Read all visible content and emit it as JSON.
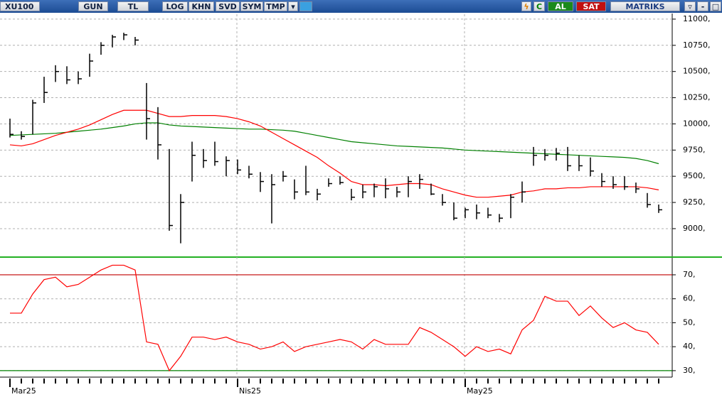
{
  "toolbar": {
    "symbol": "XU100",
    "buttons": [
      "GUN",
      "TL",
      "LOG",
      "KHN",
      "SVD",
      "SYM",
      "TMP"
    ],
    "refresh": "C",
    "buy": "AL",
    "sell": "SAT",
    "brand": "MATRIKS"
  },
  "chart_data": [
    {
      "type": "ohlc",
      "color": "#000000",
      "categories": [
        "Mar25",
        null,
        null,
        null,
        null,
        null,
        null,
        null,
        null,
        null,
        null,
        null,
        null,
        null,
        null,
        null,
        null,
        null,
        null,
        null,
        "Nis25",
        null,
        null,
        null,
        null,
        null,
        null,
        null,
        null,
        null,
        null,
        null,
        null,
        null,
        null,
        null,
        null,
        null,
        null,
        null,
        "May25",
        null,
        null,
        null,
        null,
        null,
        null,
        null,
        null,
        null,
        null,
        null,
        null,
        null,
        null,
        null,
        null,
        null
      ],
      "high": [
        10050,
        9930,
        10230,
        10450,
        10560,
        10550,
        10500,
        10670,
        10780,
        10850,
        10870,
        10830,
        10390,
        10160,
        9760,
        9330,
        9830,
        9760,
        9830,
        9690,
        9660,
        9600,
        9540,
        9520,
        9550,
        9470,
        9600,
        9380,
        9480,
        9500,
        9380,
        9420,
        9430,
        9480,
        9400,
        9500,
        9520,
        9430,
        9330,
        9250,
        9200,
        9230,
        9200,
        9140,
        9330,
        9450,
        9780,
        9760,
        9770,
        9780,
        9700,
        9680,
        9530,
        9500,
        9500,
        9440,
        9340,
        9230
      ],
      "low": [
        9870,
        9850,
        9900,
        10200,
        10400,
        10380,
        10380,
        10450,
        10660,
        10730,
        10800,
        10750,
        9850,
        9660,
        8980,
        8860,
        9450,
        9580,
        9600,
        9500,
        9520,
        9480,
        9350,
        9050,
        9450,
        9280,
        9320,
        9270,
        9400,
        9420,
        9270,
        9290,
        9300,
        9290,
        9300,
        9300,
        9380,
        9320,
        9220,
        9080,
        9100,
        9090,
        9100,
        9060,
        9100,
        9250,
        9600,
        9650,
        9650,
        9550,
        9550,
        9500,
        9400,
        9380,
        9370,
        9340,
        9200,
        9150
      ],
      "close": [
        9900,
        9880,
        10200,
        10300,
        10500,
        10420,
        10430,
        10600,
        10750,
        10830,
        10850,
        10800,
        10050,
        9800,
        9030,
        9250,
        9700,
        9650,
        9640,
        9650,
        9560,
        9520,
        9450,
        9420,
        9500,
        9350,
        9350,
        9330,
        9430,
        9440,
        9300,
        9350,
        9400,
        9380,
        9350,
        9450,
        9470,
        9330,
        9250,
        9100,
        9180,
        9150,
        9130,
        9100,
        9300,
        9350,
        9700,
        9700,
        9720,
        9600,
        9600,
        9550,
        9450,
        9420,
        9400,
        9380,
        9230,
        9180
      ],
      "lines": [
        {
          "color": "#008000",
          "values": [
            9890,
            9895,
            9900,
            9905,
            9910,
            9920,
            9930,
            9940,
            9950,
            9965,
            9980,
            10000,
            10010,
            10010,
            9990,
            9980,
            9975,
            9970,
            9965,
            9960,
            9955,
            9950,
            9950,
            9945,
            9940,
            9930,
            9910,
            9890,
            9870,
            9850,
            9830,
            9820,
            9810,
            9800,
            9790,
            9785,
            9780,
            9775,
            9770,
            9760,
            9750,
            9745,
            9740,
            9735,
            9730,
            9725,
            9720,
            9715,
            9710,
            9705,
            9700,
            9695,
            9690,
            9685,
            9680,
            9670,
            9650,
            9620
          ]
        },
        {
          "color": "#ff0000",
          "values": [
            9800,
            9790,
            9810,
            9850,
            9890,
            9920,
            9950,
            9990,
            10040,
            10090,
            10130,
            10130,
            10130,
            10100,
            10070,
            10070,
            10080,
            10080,
            10080,
            10070,
            10050,
            10020,
            9980,
            9920,
            9860,
            9800,
            9740,
            9680,
            9600,
            9530,
            9450,
            9420,
            9420,
            9410,
            9420,
            9430,
            9430,
            9420,
            9380,
            9350,
            9320,
            9300,
            9300,
            9310,
            9320,
            9350,
            9360,
            9380,
            9380,
            9390,
            9390,
            9400,
            9400,
            9400,
            9400,
            9400,
            9390,
            9370
          ]
        }
      ],
      "ylim": [
        8742,
        11047
      ],
      "yticks": [
        {
          "value": 11000,
          "label": "11000,"
        },
        {
          "value": 10750,
          "label": "10750,"
        },
        {
          "value": 10500,
          "label": "10500,"
        },
        {
          "value": 10250,
          "label": "10250,"
        },
        {
          "value": 10000,
          "label": "10000,"
        },
        {
          "value": 9750,
          "label": "9750,"
        },
        {
          "value": 9500,
          "label": "9500,"
        },
        {
          "value": 9250,
          "label": "9250,"
        },
        {
          "value": 9000,
          "label": "9000,"
        }
      ],
      "grid": true
    },
    {
      "type": "line",
      "color": "#ff0000",
      "values": [
        54,
        54,
        62,
        68,
        69,
        65,
        66,
        69,
        72,
        74,
        74,
        72,
        42,
        41,
        30,
        36,
        44,
        44,
        43,
        44,
        42,
        41,
        39,
        40,
        42,
        38,
        40,
        41,
        42,
        43,
        42,
        39,
        43,
        41,
        41,
        41,
        48,
        46,
        43,
        40,
        36,
        40,
        38,
        39,
        37,
        47,
        51,
        61,
        59,
        59,
        53,
        57,
        52,
        48,
        50,
        47,
        46,
        41
      ],
      "ylim": [
        27.6,
        77.1
      ],
      "yticks": [
        {
          "value": 70,
          "label": "70,"
        },
        {
          "value": 60,
          "label": "60,"
        },
        {
          "value": 50,
          "label": "50,"
        },
        {
          "value": 40,
          "label": "40,"
        },
        {
          "value": 30,
          "label": "30,"
        }
      ],
      "levels": [
        {
          "value": 70,
          "color": "#c00000"
        },
        {
          "value": 30,
          "color": "#008000"
        }
      ],
      "grid": true
    }
  ]
}
